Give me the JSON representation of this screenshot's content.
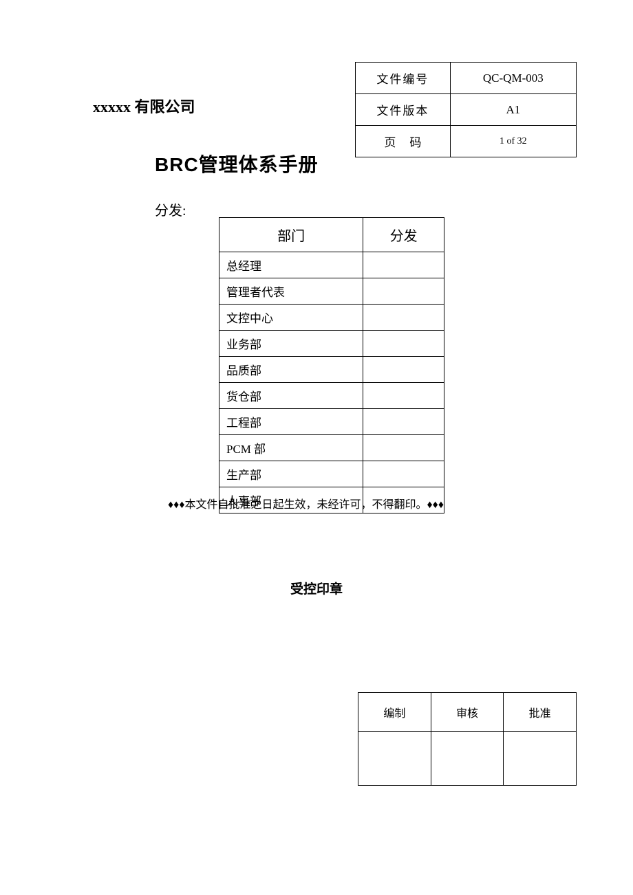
{
  "company_name": "xxxxx 有限公司",
  "header_table": {
    "doc_number_label": "文件编号",
    "doc_number_value": "QC-QM-003",
    "doc_version_label": "文件版本",
    "doc_version_value": "A1",
    "page_label": "页码",
    "page_value": "1 of 32"
  },
  "main_title": "BRC管理体系手册",
  "distribution_label": "分发:",
  "distribution_table": {
    "header_dept": "部门",
    "header_dist": "分发",
    "rows": [
      {
        "dept": "总经理",
        "dist": ""
      },
      {
        "dept": "管理者代表",
        "dist": ""
      },
      {
        "dept": "文控中心",
        "dist": ""
      },
      {
        "dept": "业务部",
        "dist": ""
      },
      {
        "dept": "品质部",
        "dist": ""
      },
      {
        "dept": "货仓部",
        "dist": ""
      },
      {
        "dept": "工程部",
        "dist": ""
      },
      {
        "dept": "PCM 部",
        "dist": ""
      },
      {
        "dept": "生产部",
        "dist": ""
      },
      {
        "dept": "人事部",
        "dist": ""
      }
    ]
  },
  "notice_text": "♦♦♦本文件自批准之日起生效，未经许可，不得翻印。♦♦♦",
  "stamp_title": "受控印章",
  "approval_table": {
    "col1_label": "编制",
    "col2_label": "审核",
    "col3_label": "批准",
    "col1_value": "",
    "col2_value": "",
    "col3_value": ""
  },
  "styling": {
    "background_color": "#ffffff",
    "text_color": "#000000",
    "border_color": "#000000",
    "company_fontsize": 22,
    "title_fontsize": 28,
    "header_table_fontsize": 17,
    "distribution_header_fontsize": 20,
    "distribution_cell_fontsize": 17,
    "notice_fontsize": 16,
    "stamp_fontsize": 19,
    "approval_fontsize": 16
  }
}
